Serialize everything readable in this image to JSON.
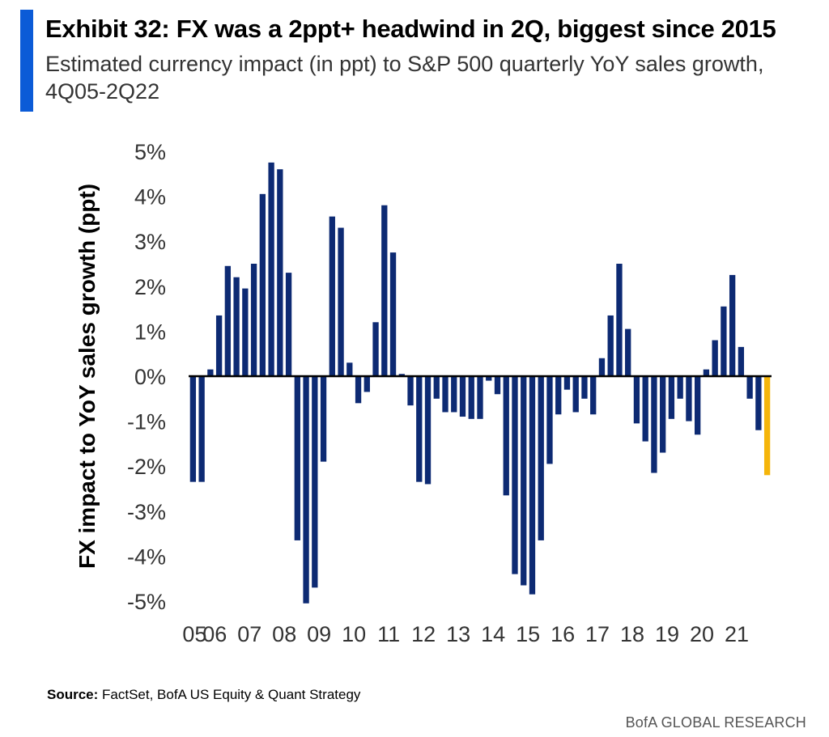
{
  "header": {
    "title": "Exhibit 32: FX was a 2ppt+ headwind in 2Q, biggest since 2015",
    "subtitle": "Estimated currency impact (in ppt) to S&P 500 quarterly YoY sales growth, 4Q05-2Q22"
  },
  "colors": {
    "accent": "#0b5bd7",
    "bar": "#0d2a73",
    "highlight": "#f5b50a",
    "axis": "#000000",
    "text": "#333333"
  },
  "chart_data": {
    "type": "bar",
    "ylabel": "FX impact to YoY sales growth (ppt)",
    "ylim": [
      -5,
      5
    ],
    "yticks": [
      "5%",
      "4%",
      "3%",
      "2%",
      "1%",
      "0%",
      "-1%",
      "-2%",
      "-3%",
      "-4%",
      "-5%"
    ],
    "ytick_values": [
      5,
      4,
      3,
      2,
      1,
      0,
      -1,
      -2,
      -3,
      -4,
      -5
    ],
    "xtick_labels": [
      "05",
      "06",
      "07",
      "08",
      "09",
      "10",
      "11",
      "12",
      "13",
      "14",
      "15",
      "16",
      "17",
      "18",
      "19",
      "20",
      "21"
    ],
    "x_start": "4Q05",
    "x_end": "2Q22",
    "highlight_last": true,
    "values": [
      -2.35,
      -2.35,
      0.15,
      1.35,
      2.45,
      2.2,
      1.95,
      2.5,
      4.05,
      4.75,
      4.6,
      2.3,
      -3.65,
      -5.05,
      -4.7,
      -1.9,
      3.55,
      3.3,
      0.3,
      -0.6,
      -0.35,
      1.2,
      3.8,
      2.75,
      0.05,
      -0.65,
      -2.35,
      -2.4,
      -0.5,
      -0.8,
      -0.8,
      -0.9,
      -0.95,
      -0.95,
      -0.1,
      -0.4,
      -2.65,
      -4.4,
      -4.65,
      -4.85,
      -3.65,
      -1.95,
      -0.85,
      -0.3,
      -0.8,
      -0.5,
      -0.85,
      0.4,
      1.35,
      2.5,
      1.05,
      -1.05,
      -1.45,
      -2.15,
      -1.7,
      -0.95,
      -0.5,
      -1.0,
      -1.3,
      0.15,
      0.8,
      1.55,
      2.25,
      0.65,
      -0.5,
      -1.2,
      -2.2
    ]
  },
  "footer": {
    "source_label": "Source:",
    "source_text": " FactSet, BofA US Equity & Quant Strategy",
    "brand": "BofA GLOBAL RESEARCH"
  }
}
